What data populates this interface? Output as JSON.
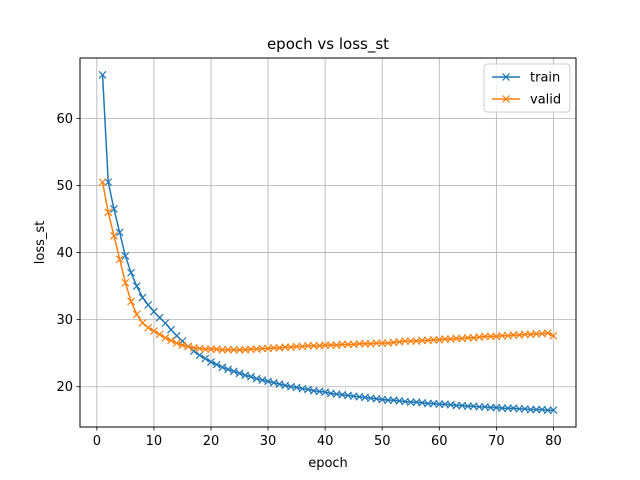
{
  "chart_data": {
    "type": "line",
    "title": "epoch vs loss_st",
    "xlabel": "epoch",
    "ylabel": "loss_st",
    "xlim": [
      -2.95,
      83.95
    ],
    "ylim": [
      14.0,
      69.0
    ],
    "xticks": [
      0,
      10,
      20,
      30,
      40,
      50,
      60,
      70,
      80
    ],
    "yticks": [
      20,
      30,
      40,
      50,
      60
    ],
    "grid": true,
    "legend_position": "top-right",
    "marker": "x",
    "series": [
      {
        "name": "train",
        "color": "#1f77b4",
        "x": [
          1,
          2,
          3,
          4,
          5,
          6,
          7,
          8,
          9,
          10,
          11,
          12,
          13,
          14,
          15,
          16,
          17,
          18,
          19,
          20,
          21,
          22,
          23,
          24,
          25,
          26,
          27,
          28,
          29,
          30,
          31,
          32,
          33,
          34,
          35,
          36,
          37,
          38,
          39,
          40,
          41,
          42,
          43,
          44,
          45,
          46,
          47,
          48,
          49,
          50,
          51,
          52,
          53,
          54,
          55,
          56,
          57,
          58,
          59,
          60,
          61,
          62,
          63,
          64,
          65,
          66,
          67,
          68,
          69,
          70,
          71,
          72,
          73,
          74,
          75,
          76,
          77,
          78,
          79,
          80
        ],
        "values": [
          66.5,
          50.5,
          46.5,
          43.0,
          39.5,
          37.0,
          35.0,
          33.3,
          32.2,
          31.2,
          30.3,
          29.5,
          28.5,
          27.6,
          26.8,
          26.0,
          25.3,
          24.7,
          24.2,
          23.7,
          23.3,
          22.9,
          22.6,
          22.3,
          22.0,
          21.7,
          21.5,
          21.2,
          21.0,
          20.8,
          20.6,
          20.4,
          20.2,
          20.0,
          19.9,
          19.7,
          19.6,
          19.4,
          19.3,
          19.2,
          19.0,
          18.9,
          18.8,
          18.7,
          18.6,
          18.5,
          18.4,
          18.3,
          18.2,
          18.1,
          18.0,
          18.0,
          17.9,
          17.8,
          17.7,
          17.7,
          17.6,
          17.5,
          17.5,
          17.4,
          17.4,
          17.3,
          17.2,
          17.2,
          17.1,
          17.1,
          17.0,
          17.0,
          16.9,
          16.9,
          16.8,
          16.8,
          16.8,
          16.7,
          16.7,
          16.6,
          16.6,
          16.6,
          16.5,
          16.5
        ]
      },
      {
        "name": "valid",
        "color": "#ff7f0e",
        "x": [
          1,
          2,
          3,
          4,
          5,
          6,
          7,
          8,
          9,
          10,
          11,
          12,
          13,
          14,
          15,
          16,
          17,
          18,
          19,
          20,
          21,
          22,
          23,
          24,
          25,
          26,
          27,
          28,
          29,
          30,
          31,
          32,
          33,
          34,
          35,
          36,
          37,
          38,
          39,
          40,
          41,
          42,
          43,
          44,
          45,
          46,
          47,
          48,
          49,
          50,
          51,
          52,
          53,
          54,
          55,
          56,
          57,
          58,
          59,
          60,
          61,
          62,
          63,
          64,
          65,
          66,
          67,
          68,
          69,
          70,
          71,
          72,
          73,
          74,
          75,
          76,
          77,
          78,
          79,
          80
        ],
        "values": [
          50.5,
          46.0,
          42.5,
          39.0,
          35.5,
          32.7,
          30.8,
          29.5,
          28.8,
          28.3,
          27.8,
          27.3,
          26.9,
          26.5,
          26.2,
          26.0,
          25.8,
          25.7,
          25.6,
          25.6,
          25.6,
          25.5,
          25.5,
          25.5,
          25.5,
          25.5,
          25.6,
          25.6,
          25.7,
          25.7,
          25.8,
          25.8,
          25.9,
          25.9,
          26.0,
          26.0,
          26.1,
          26.1,
          26.1,
          26.2,
          26.2,
          26.2,
          26.3,
          26.3,
          26.3,
          26.4,
          26.4,
          26.4,
          26.5,
          26.5,
          26.5,
          26.6,
          26.7,
          26.8,
          26.8,
          26.8,
          26.9,
          26.9,
          27.0,
          27.0,
          27.1,
          27.1,
          27.2,
          27.2,
          27.3,
          27.3,
          27.4,
          27.5,
          27.5,
          27.5,
          27.6,
          27.6,
          27.7,
          27.7,
          27.8,
          27.8,
          27.9,
          27.9,
          28.0,
          27.6
        ]
      }
    ]
  }
}
